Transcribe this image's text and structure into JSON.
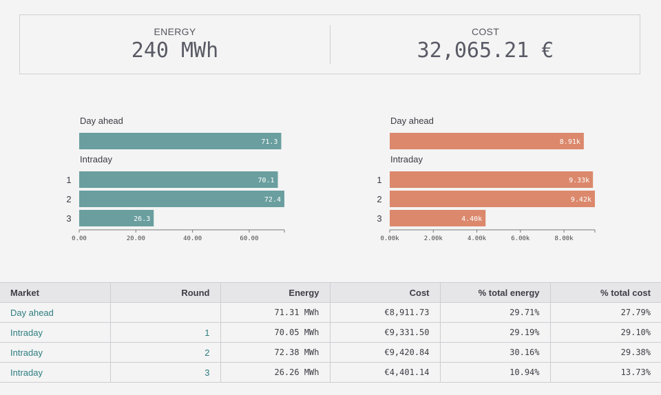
{
  "kpis": {
    "energy": {
      "label": "ENERGY",
      "value": "240 MWh"
    },
    "cost": {
      "label": "COST",
      "value": "32,065.21 €"
    }
  },
  "colors": {
    "energy_bar": "#6a9e9f",
    "cost_bar": "#db886c",
    "link": "#2e7d80"
  },
  "chart_data": [
    {
      "type": "bar",
      "orientation": "horizontal",
      "groups": [
        {
          "label": "Day ahead",
          "bars": [
            {
              "round": "",
              "value": 71.3,
              "label": "71.3"
            }
          ]
        },
        {
          "label": "Intraday",
          "bars": [
            {
              "round": "1",
              "value": 70.1,
              "label": "70.1"
            },
            {
              "round": "2",
              "value": 72.4,
              "label": "72.4"
            },
            {
              "round": "3",
              "value": 26.3,
              "label": "26.3"
            }
          ]
        }
      ],
      "xlim": [
        0,
        72.4
      ],
      "ticks": [
        0,
        20,
        40,
        60
      ],
      "tick_labels": [
        "0.00",
        "20.00",
        "40.00",
        "60.00"
      ],
      "color": "#6a9e9f"
    },
    {
      "type": "bar",
      "orientation": "horizontal",
      "groups": [
        {
          "label": "Day ahead",
          "bars": [
            {
              "round": "",
              "value": 8911.73,
              "label": "8.91k"
            }
          ]
        },
        {
          "label": "Intraday",
          "bars": [
            {
              "round": "1",
              "value": 9331.5,
              "label": "9.33k"
            },
            {
              "round": "2",
              "value": 9420.84,
              "label": "9.42k"
            },
            {
              "round": "3",
              "value": 4401.14,
              "label": "4.40k"
            }
          ]
        }
      ],
      "xlim": [
        0,
        9420.84
      ],
      "ticks": [
        0,
        2000,
        4000,
        6000,
        8000
      ],
      "tick_labels": [
        "0.00k",
        "2.00k",
        "4.00k",
        "6.00k",
        "8.00k"
      ],
      "color": "#db886c"
    }
  ],
  "table": {
    "headers": [
      "Market",
      "Round",
      "Energy",
      "Cost",
      "% total energy",
      "% total cost"
    ],
    "rows": [
      [
        "Day ahead",
        "",
        "71.31 MWh",
        "€8,911.73",
        "29.71%",
        "27.79%"
      ],
      [
        "Intraday",
        "1",
        "70.05 MWh",
        "€9,331.50",
        "29.19%",
        "29.10%"
      ],
      [
        "Intraday",
        "2",
        "72.38 MWh",
        "€9,420.84",
        "30.16%",
        "29.38%"
      ],
      [
        "Intraday",
        "3",
        "26.26 MWh",
        "€4,401.14",
        "10.94%",
        "13.73%"
      ]
    ]
  }
}
